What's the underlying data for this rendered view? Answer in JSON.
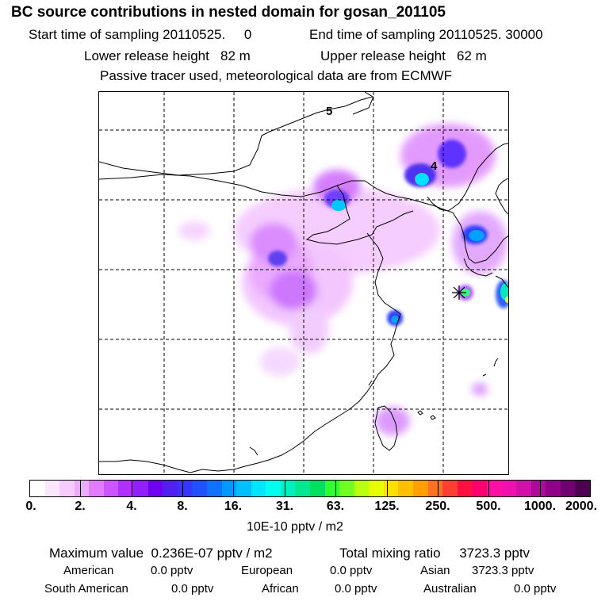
{
  "header": {
    "title": "BC  source contributions in nested domain for gosan_201105",
    "start_label": "Start time of sampling",
    "start_value": "20110525.     0",
    "end_label": "End time of sampling",
    "end_value": "20110525. 30000",
    "lower_label": "Lower release height",
    "lower_value": "82 m",
    "upper_label": "Upper release height",
    "upper_value": "62 m",
    "note": "Passive tracer used, meteorological data are from ECMWF"
  },
  "map": {
    "grid_labels": [
      "5",
      "4"
    ],
    "release_marker": "receptor-star"
  },
  "colorbar": {
    "ticks": [
      "0.",
      "2.",
      "4.",
      "8.",
      "16.",
      "31.",
      "63.",
      "125.",
      "250.",
      "500.",
      "1000.",
      "2000."
    ],
    "units": "10E-10 pptv / m2",
    "colors": [
      "#ffffff",
      "#fbe6ff",
      "#f6ccff",
      "#eeaaff",
      "#e27bff",
      "#cc55ff",
      "#b030ff",
      "#9020ff",
      "#7000f0",
      "#5020f0",
      "#3535ff",
      "#2050ff",
      "#1070ff",
      "#0098ff",
      "#00c0ff",
      "#00e6ff",
      "#00ffee",
      "#00f0c0",
      "#00e890",
      "#00e060",
      "#30ff30",
      "#70ff20",
      "#b8ff10",
      "#e8ff00",
      "#ffe000",
      "#ffc000",
      "#ffa000",
      "#ff7020",
      "#ff4030",
      "#ff1040",
      "#ff0070",
      "#ff10a0",
      "#f010b0",
      "#d010a8",
      "#b00898",
      "#900088",
      "#700070",
      "#500050"
    ]
  },
  "stats": {
    "max_label": "Maximum value",
    "max_value": "0.236E-07 pptv / m2",
    "total_label": "Total mixing ratio",
    "total_value": "3723.3 pptv",
    "regions": [
      {
        "name": "American",
        "value": "0.0 pptv"
      },
      {
        "name": "European",
        "value": "0.0 pptv"
      },
      {
        "name": "Asian",
        "value": "3723.3 pptv"
      },
      {
        "name": "South American",
        "value": "0.0 pptv"
      },
      {
        "name": "African",
        "value": "0.0 pptv"
      },
      {
        "name": "Australian",
        "value": "0.0 pptv"
      }
    ]
  }
}
